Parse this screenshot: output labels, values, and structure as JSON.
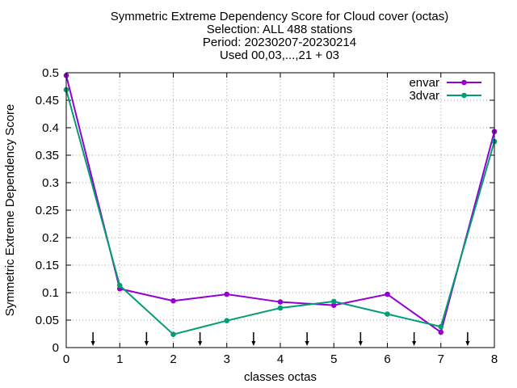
{
  "chart_data": {
    "type": "line",
    "title_lines": [
      "Symmetric Extreme Dependency Score  for Cloud cover (octas)",
      "Selection: ALL    488 stations",
      "Period: 20230207-20230214",
      "Used 00,03,...,21 + 03"
    ],
    "xlabel": "classes octas",
    "ylabel": "Symmetric Extreme Dependency Score",
    "xlim": [
      0,
      8
    ],
    "ylim": [
      0,
      0.5
    ],
    "xticks": [
      "0",
      "1",
      "2",
      "3",
      "4",
      "5",
      "6",
      "7",
      "8"
    ],
    "yticks": [
      "0",
      "0.05",
      "0.1",
      "0.15",
      "0.2",
      "0.25",
      "0.3",
      "0.35",
      "0.4",
      "0.45",
      "0.5"
    ],
    "grid": true,
    "legend_position": "top-right",
    "x": [
      0,
      1,
      2,
      3,
      4,
      5,
      6,
      7,
      8
    ],
    "series": [
      {
        "name": "envar",
        "color": "#9400d3",
        "marker": "filled-circle",
        "values": [
          0.495,
          0.107,
          0.085,
          0.097,
          0.083,
          0.077,
          0.097,
          0.028,
          0.393
        ]
      },
      {
        "name": "3dvar",
        "color": "#009e73",
        "marker": "filled-circle",
        "values": [
          0.469,
          0.113,
          0.024,
          0.049,
          0.072,
          0.084,
          0.061,
          0.038,
          0.375
        ]
      }
    ],
    "class_boundary_arrows": {
      "x": [
        0.5,
        1.5,
        2.5,
        3.5,
        4.5,
        5.5,
        6.5,
        7.5
      ],
      "icon": "down-arrow-icon"
    }
  }
}
